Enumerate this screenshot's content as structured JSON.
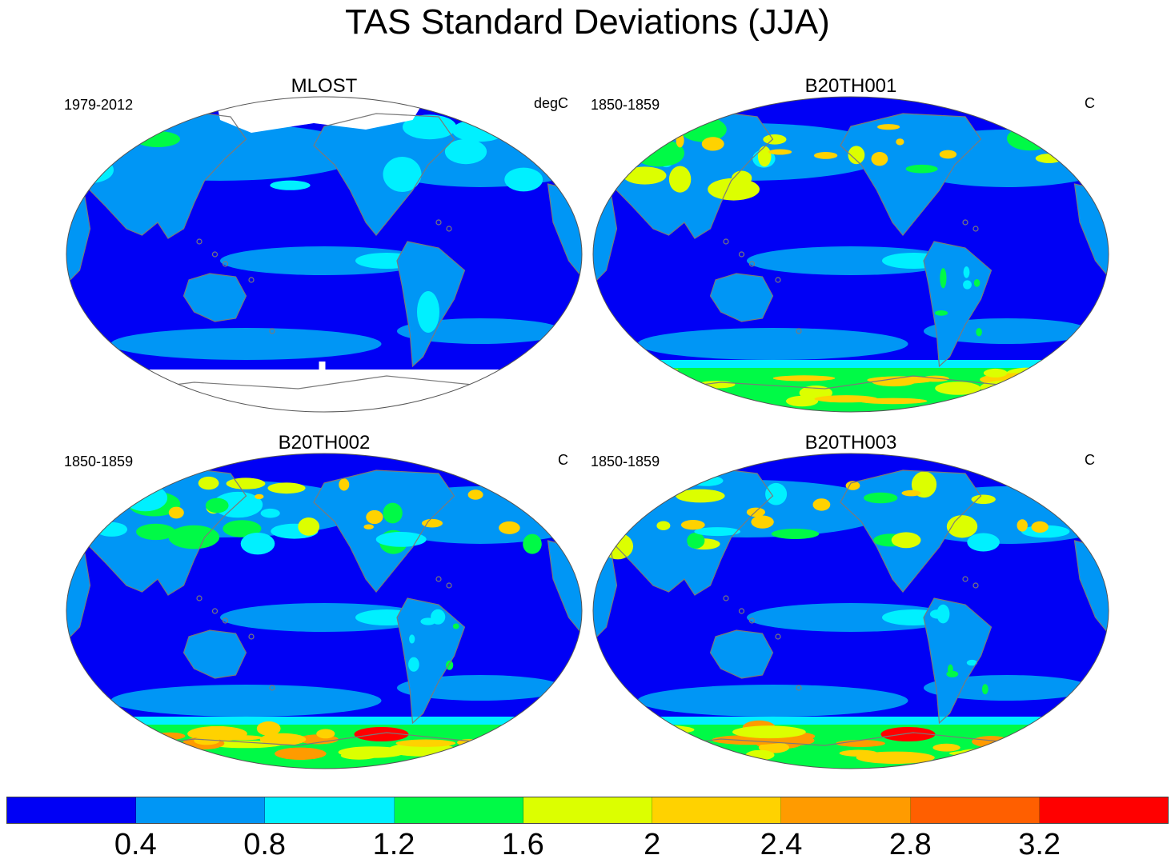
{
  "title": "TAS Standard Deviations (JJA)",
  "panels": [
    {
      "title": "MLOST",
      "left_label": "1979-2012",
      "right_label": "degC",
      "mask_polar": true,
      "south_intensity": 0
    },
    {
      "title": "B20TH001",
      "left_label": "1850-1859",
      "right_label": "C",
      "mask_polar": false,
      "south_intensity": 2
    },
    {
      "title": "B20TH002",
      "left_label": "1850-1859",
      "right_label": "C",
      "mask_polar": false,
      "south_intensity": 3
    },
    {
      "title": "B20TH003",
      "left_label": "1850-1859",
      "right_label": "C",
      "mask_polar": false,
      "south_intensity": 3
    }
  ],
  "colorbar": {
    "colors": [
      "#0000f5",
      "#0096f5",
      "#00f0ff",
      "#00fa46",
      "#dcff00",
      "#ffd200",
      "#ff9b00",
      "#ff5f00",
      "#ff0000"
    ],
    "labels": [
      "0.4",
      "0.8",
      "1.2",
      "1.6",
      "2",
      "2.4",
      "2.8",
      "3.2"
    ]
  }
}
